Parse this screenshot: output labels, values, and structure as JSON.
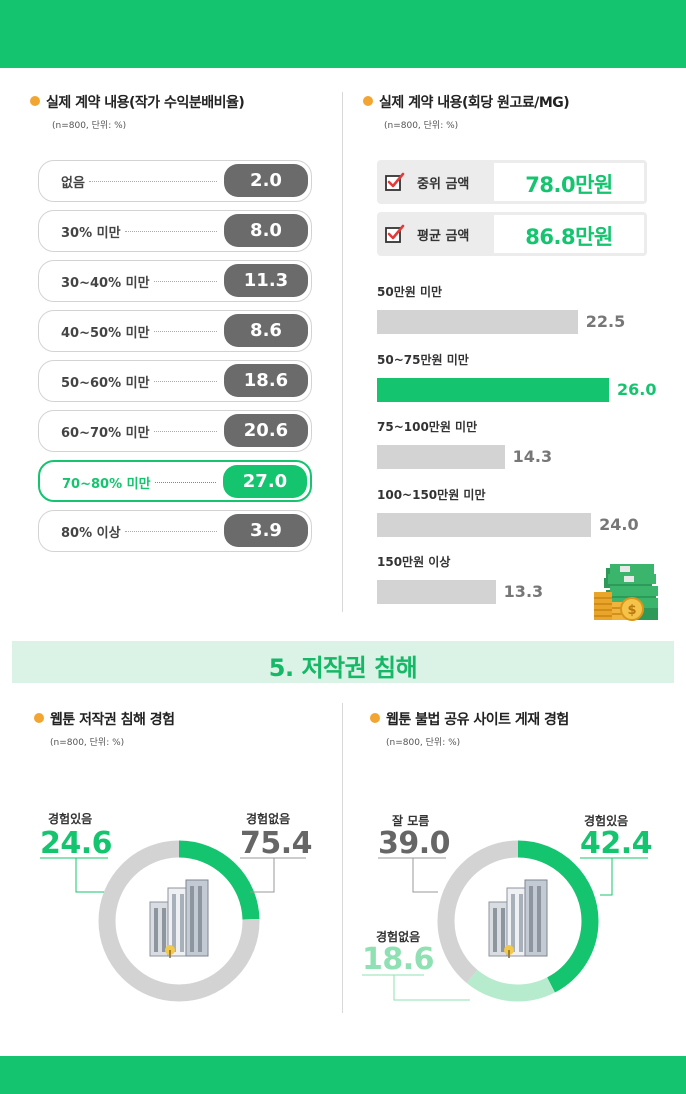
{
  "left_top": {
    "title": "실제 계약 내용(작가 수익분배비율)",
    "subtitle": "(n=800, 단위: %)"
  },
  "right_top": {
    "title": "실제 계약 내용(회당 원고료/MG)",
    "subtitle": "(n=800, 단위: %)",
    "median_label": "중위 금액",
    "median_value": "78.0만원",
    "mean_label": "평균 금액",
    "mean_value": "86.8만원"
  },
  "banner": {
    "title": "5. 저작권 침해"
  },
  "left_bottom": {
    "title": "웹툰 저작권 침해 경험",
    "subtitle": "(n=800, 단위: %)"
  },
  "right_bottom": {
    "title": "웹툰 불법 공유 사이트 게재 경험",
    "subtitle": "(n=800, 단위: %)"
  },
  "colors": {
    "accent": "#14c46e",
    "accent_light": "#b7ebcd",
    "gray_bar": "#d3d3d3",
    "dark_pill": "#6b6b6b",
    "bullet": "#f2a531"
  },
  "icons": [
    "check-icon",
    "money-stack-icon",
    "building-icon"
  ],
  "chart_data": [
    {
      "type": "bar",
      "title": "실제 계약 내용(작가 수익분배비율)",
      "categories": [
        "없음",
        "30% 미만",
        "30~40% 미만",
        "40~50% 미만",
        "50~60% 미만",
        "60~70% 미만",
        "70~80% 미만",
        "80% 이상"
      ],
      "values": [
        2.0,
        8.0,
        11.3,
        8.6,
        18.6,
        20.6,
        27.0,
        3.9
      ],
      "value_labels": [
        "2.0",
        "8.0",
        "11.3",
        "8.6",
        "18.6",
        "20.6",
        "27.0",
        "3.9"
      ],
      "highlight": "70~80% 미만"
    },
    {
      "type": "bar",
      "title": "실제 계약 내용(회당 원고료/MG)",
      "categories": [
        "50만원 미만",
        "50~75만원 미만",
        "75~100만원 미만",
        "100~150만원 미만",
        "150만원 이상"
      ],
      "values": [
        22.5,
        26.0,
        14.3,
        24.0,
        13.3
      ],
      "value_labels": [
        "22.5",
        "26.0",
        "14.3",
        "24.0",
        "13.3"
      ],
      "highlight": "50~75만원 미만"
    },
    {
      "type": "pie",
      "title": "웹툰 저작권 침해 경험",
      "categories": [
        "경험있음",
        "경험없음"
      ],
      "values": [
        24.6,
        75.4
      ],
      "value_labels": [
        "24.6",
        "75.4"
      ]
    },
    {
      "type": "pie",
      "title": "웹툰 불법 공유 사이트 게재 경험",
      "categories": [
        "경험있음",
        "경험없음",
        "잘 모름"
      ],
      "values": [
        42.4,
        18.6,
        39.0
      ],
      "value_labels": [
        "42.4",
        "18.6",
        "39.0"
      ]
    }
  ]
}
